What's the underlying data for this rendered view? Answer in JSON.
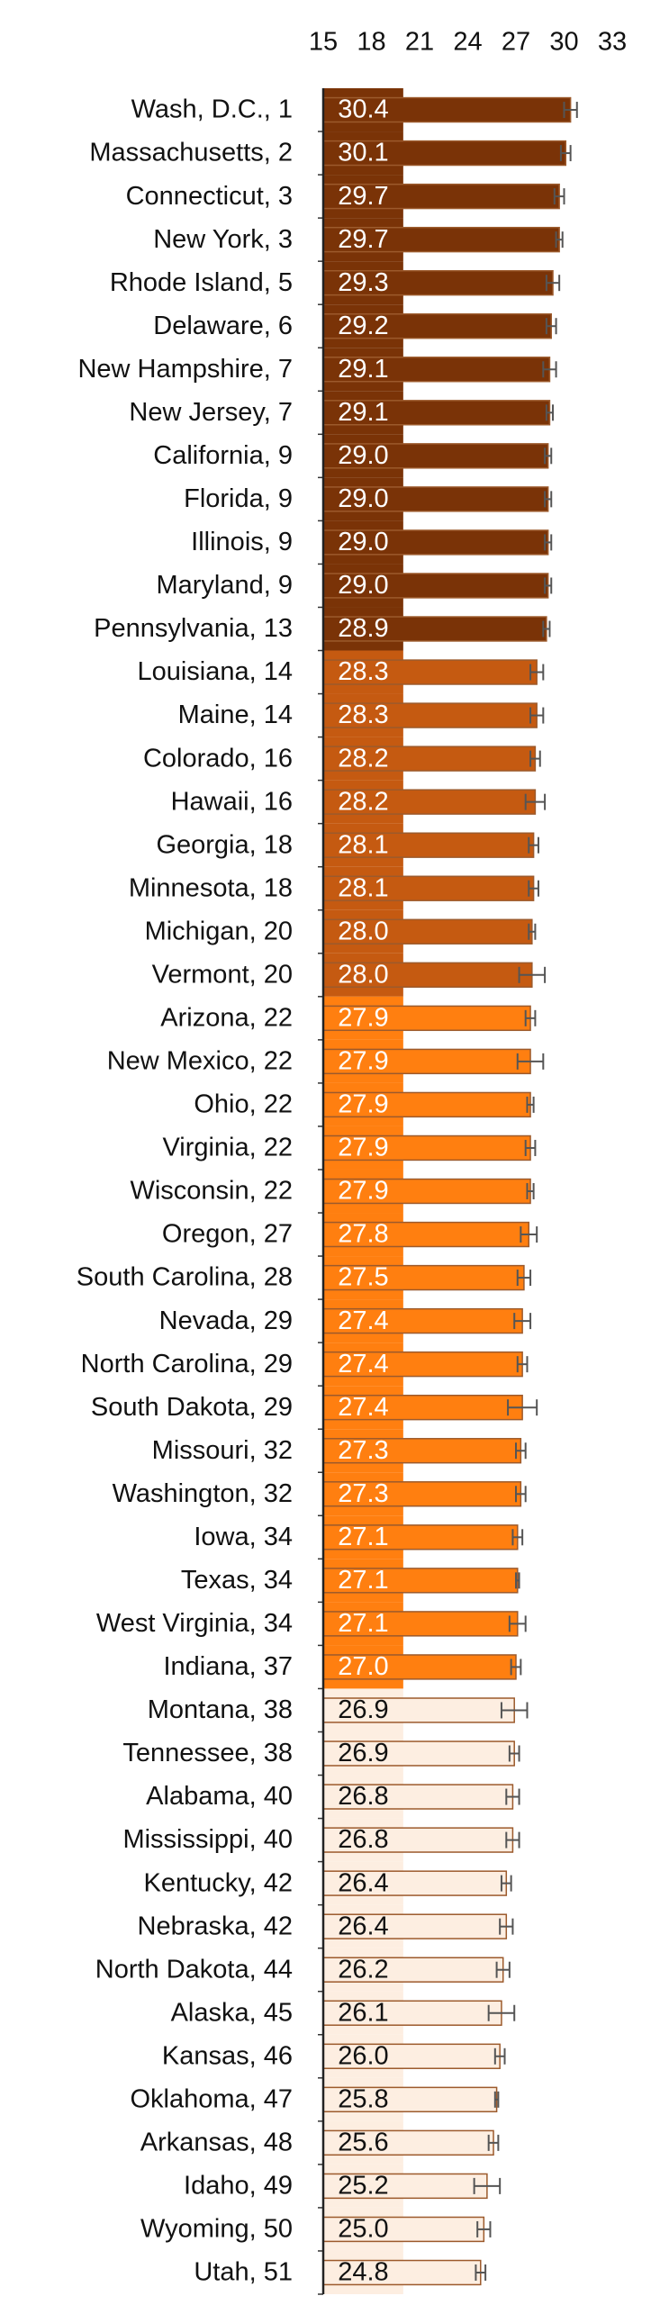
{
  "chart_data": {
    "type": "hbar",
    "categories": [
      "Wash, D.C., 1",
      "Massachusetts, 2",
      "Connecticut, 3",
      "New York, 3",
      "Rhode Island, 5",
      "Delaware, 6",
      "New Hampshire, 7",
      "New Jersey, 7",
      "California, 9",
      "Florida, 9",
      "Illinois, 9",
      "Maryland, 9",
      "Pennsylvania, 13",
      "Louisiana, 14",
      "Maine, 14",
      "Colorado, 16",
      "Hawaii, 16",
      "Georgia, 18",
      "Minnesota, 18",
      "Michigan, 20",
      "Vermont, 20",
      "Arizona, 22",
      "New Mexico, 22",
      "Ohio, 22",
      "Virginia, 22",
      "Wisconsin, 22",
      "Oregon, 27",
      "South Carolina, 28",
      "Nevada, 29",
      "North Carolina, 29",
      "South Dakota, 29",
      "Missouri, 32",
      "Washington, 32",
      "Iowa, 34",
      "Texas, 34",
      "West Virginia, 34",
      "Indiana, 37",
      "Montana, 38",
      "Tennessee, 38",
      "Alabama, 40",
      "Mississippi, 40",
      "Kentucky, 42",
      "Nebraska, 42",
      "North Dakota, 44",
      "Alaska, 45",
      "Kansas, 46",
      "Oklahoma, 47",
      "Arkansas, 48",
      "Idaho, 49",
      "Wyoming, 50",
      "Utah, 51"
    ],
    "values": [
      30.4,
      30.1,
      29.7,
      29.7,
      29.3,
      29.2,
      29.1,
      29.1,
      29,
      29,
      29,
      29,
      28.9,
      28.3,
      28.3,
      28.2,
      28.2,
      28.1,
      28.1,
      28,
      28,
      27.9,
      27.9,
      27.9,
      27.9,
      27.9,
      27.8,
      27.5,
      27.4,
      27.4,
      27.4,
      27.3,
      27.3,
      27.1,
      27.1,
      27.1,
      27,
      26.9,
      26.9,
      26.8,
      26.8,
      26.4,
      26.4,
      26.2,
      26.1,
      26,
      25.8,
      25.6,
      25.2,
      25,
      24.8
    ],
    "value_labels": [
      "30.4",
      "30.1",
      "29.7",
      "29.7",
      "29.3",
      "29.2",
      "29.1",
      "29.1",
      "29.0",
      "29.0",
      "29.0",
      "29.0",
      "28.9",
      "28.3",
      "28.3",
      "28.2",
      "28.2",
      "28.1",
      "28.1",
      "28.0",
      "28.0",
      "27.9",
      "27.9",
      "27.9",
      "27.9",
      "27.9",
      "27.8",
      "27.5",
      "27.4",
      "27.4",
      "27.4",
      "27.3",
      "27.3",
      "27.1",
      "27.1",
      "27.1",
      "27.0",
      "26.9",
      "26.9",
      "26.8",
      "26.8",
      "26.4",
      "26.4",
      "26.2",
      "26.1",
      "26.0",
      "25.8",
      "25.6",
      "25.2",
      "25.0",
      "24.8"
    ],
    "errors": [
      0.4,
      0.3,
      0.3,
      0.2,
      0.4,
      0.3,
      0.4,
      0.2,
      0.2,
      0.2,
      0.2,
      0.2,
      0.2,
      0.4,
      0.4,
      0.3,
      0.6,
      0.3,
      0.3,
      0.2,
      0.8,
      0.3,
      0.8,
      0.2,
      0.3,
      0.2,
      0.5,
      0.4,
      0.5,
      0.3,
      0.9,
      0.3,
      0.3,
      0.3,
      0.1,
      0.5,
      0.3,
      0.8,
      0.3,
      0.4,
      0.4,
      0.3,
      0.4,
      0.4,
      0.8,
      0.3,
      0.1,
      0.3,
      0.8,
      0.4,
      0.3
    ],
    "colors": [
      "#7a3307",
      "#7a3307",
      "#7a3307",
      "#7a3307",
      "#7a3307",
      "#7a3307",
      "#7a3307",
      "#7a3307",
      "#7a3307",
      "#7a3307",
      "#7a3307",
      "#7a3307",
      "#7a3307",
      "#c55a11",
      "#c55a11",
      "#c55a11",
      "#c55a11",
      "#c55a11",
      "#c55a11",
      "#c55a11",
      "#c55a11",
      "#ff7f10",
      "#ff7f10",
      "#ff7f10",
      "#ff7f10",
      "#ff7f10",
      "#ff7f10",
      "#ff7f10",
      "#ff7f10",
      "#ff7f10",
      "#ff7f10",
      "#ff7f10",
      "#ff7f10",
      "#ff7f10",
      "#ff7f10",
      "#ff7f10",
      "#ff7f10",
      "#fdeee1",
      "#fdeee1",
      "#fdeee1",
      "#fdeee1",
      "#fdeee1",
      "#fdeee1",
      "#fdeee1",
      "#fdeee1",
      "#fdeee1",
      "#fdeee1",
      "#fdeee1",
      "#fdeee1",
      "#fdeee1",
      "#fdeee1"
    ],
    "xlim": [
      15,
      33
    ],
    "xticks": [
      15,
      18,
      21,
      24,
      27,
      30,
      33
    ]
  }
}
